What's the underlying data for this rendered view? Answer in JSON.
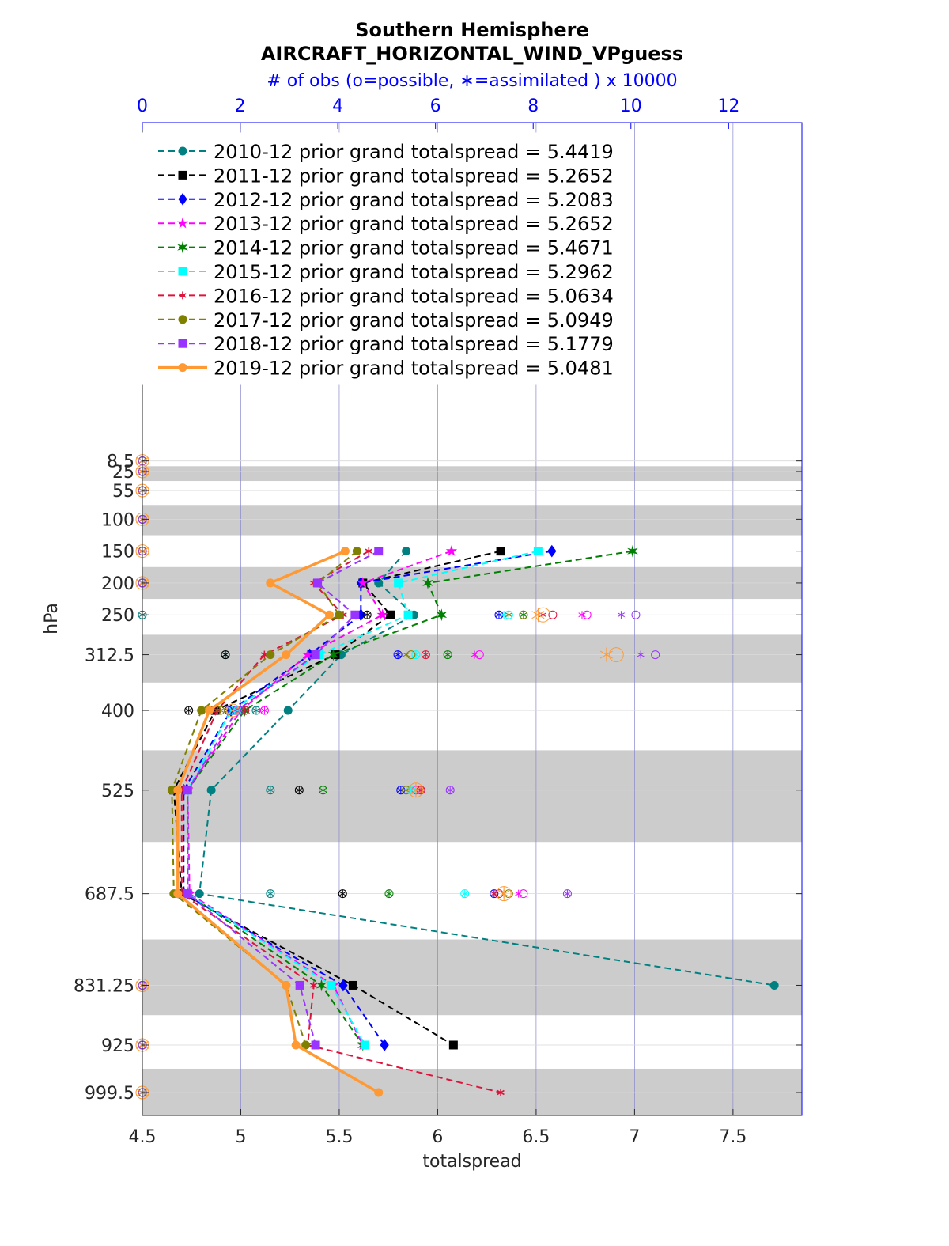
{
  "chart_data": {
    "type": "line",
    "title": "Southern Hemisphere",
    "subtitle": "AIRCRAFT_HORIZONTAL_WIND_VPguess",
    "top_axis_label": "# of obs (o=possible, ∗=assimilated ) x 10000",
    "xlabel": "totalspread",
    "ylabel": "hPa",
    "xlim": [
      4.5,
      7.85
    ],
    "x_ticks": [
      "4.5",
      "5",
      "5.5",
      "6",
      "6.5",
      "7",
      "7.5"
    ],
    "top_lim": [
      0,
      13.5
    ],
    "top_ticks": [
      "0",
      "2",
      "4",
      "6",
      "8",
      "10",
      "12"
    ],
    "levels": [
      8.5,
      25,
      55,
      100,
      150,
      200,
      250,
      312.5,
      400,
      525,
      687.5,
      831.25,
      925,
      999.5
    ],
    "level_labels": [
      "8.5",
      "25",
      "55",
      "100",
      "150",
      "200",
      "250",
      "312.5",
      "400",
      "525",
      "687.5",
      "831.25",
      "925",
      "999.5"
    ],
    "band_levels": [
      25,
      100,
      200,
      312.5,
      525,
      831.25,
      999.5
    ],
    "series": [
      {
        "name": "2010-12 prior grand totalspread = 5.4419",
        "color": "#008080",
        "marker": "circle",
        "style": "dashed",
        "values": [
          null,
          null,
          null,
          null,
          5.84,
          5.7,
          5.88,
          5.51,
          5.24,
          4.85,
          4.79,
          7.71,
          null,
          null
        ],
        "obs_possible": [
          0,
          0,
          0,
          0,
          0,
          0,
          0,
          1.7,
          2.33,
          2.62,
          2.62,
          0,
          0,
          0
        ],
        "obs_assim": [
          0,
          0,
          0,
          0,
          0,
          0,
          0,
          1.7,
          2.33,
          2.62,
          2.62,
          0,
          0,
          0
        ]
      },
      {
        "name": "2011-12 prior grand totalspread = 5.2652",
        "color": "#000000",
        "marker": "square",
        "style": "dashed",
        "values": [
          null,
          null,
          null,
          null,
          6.32,
          5.62,
          5.76,
          5.48,
          4.87,
          4.66,
          4.7,
          5.57,
          6.08,
          null
        ],
        "obs_possible": [
          0,
          0,
          0,
          0,
          0,
          0,
          4.6,
          1.7,
          0.95,
          3.21,
          4.1,
          0,
          0,
          0
        ],
        "obs_assim": [
          0,
          0,
          0,
          0,
          0,
          0,
          4.6,
          1.7,
          0.95,
          3.21,
          4.1,
          0,
          0,
          0
        ]
      },
      {
        "name": "2012-12 prior grand totalspread = 5.2083",
        "color": "#0000ff",
        "marker": "diamond",
        "style": "dashed",
        "values": [
          null,
          null,
          null,
          null,
          6.58,
          5.61,
          5.61,
          5.35,
          4.95,
          4.71,
          4.71,
          5.52,
          5.73,
          null
        ],
        "obs_possible": [
          0,
          0,
          0,
          0,
          0,
          0,
          7.3,
          5.23,
          1.76,
          5.29,
          7.2,
          0,
          0,
          0
        ],
        "obs_assim": [
          0,
          0,
          0,
          0,
          0,
          0,
          7.3,
          5.23,
          1.76,
          5.29,
          7.2,
          0,
          0,
          0
        ]
      },
      {
        "name": "2013-12 prior grand totalspread = 5.2652",
        "color": "#ff00ff",
        "marker": "star",
        "style": "dashed",
        "values": [
          null,
          null,
          null,
          null,
          6.07,
          5.62,
          5.72,
          5.34,
          5.0,
          4.73,
          4.74,
          5.47,
          5.62,
          null
        ],
        "obs_possible": [
          0,
          0,
          0,
          0,
          0,
          0,
          9.1,
          6.9,
          2.5,
          5.6,
          7.8,
          0,
          0,
          0
        ],
        "obs_assim": [
          0,
          0,
          0,
          0,
          0,
          0,
          9.0,
          6.8,
          2.5,
          5.6,
          7.7,
          0,
          0,
          0
        ]
      },
      {
        "name": "2014-12 prior grand totalspread = 5.4671",
        "color": "#008000",
        "marker": "hexagram",
        "style": "dashed",
        "values": [
          null,
          null,
          null,
          null,
          6.99,
          5.95,
          6.02,
          5.47,
          5.02,
          4.73,
          4.73,
          5.41,
          5.62,
          null
        ],
        "obs_possible": [
          0,
          0,
          0,
          0,
          0,
          0,
          7.8,
          6.25,
          2.1,
          3.7,
          5.05,
          0,
          0,
          0
        ],
        "obs_assim": [
          0,
          0,
          0,
          0,
          0,
          0,
          7.8,
          6.25,
          2.1,
          3.7,
          5.05,
          0,
          0,
          0
        ]
      },
      {
        "name": "2015-12 prior grand totalspread = 5.2962",
        "color": "#00ffff",
        "marker": "square",
        "style": "dashed",
        "values": [
          null,
          null,
          null,
          null,
          6.51,
          5.8,
          5.85,
          5.4,
          4.95,
          4.73,
          4.73,
          5.46,
          5.63,
          null
        ],
        "obs_possible": [
          0,
          0,
          0,
          0,
          0,
          0,
          7.5,
          5.6,
          1.95,
          5.5,
          6.6,
          0,
          0,
          0
        ],
        "obs_assim": [
          0,
          0,
          0,
          0,
          0,
          0,
          7.4,
          5.6,
          1.95,
          5.5,
          6.6,
          0,
          0,
          0
        ]
      },
      {
        "name": "2016-12 prior grand totalspread = 5.0634",
        "color": "#dc143c",
        "marker": "asterisk",
        "style": "dashed",
        "values": [
          null,
          null,
          null,
          null,
          5.65,
          5.37,
          5.52,
          5.12,
          4.88,
          4.7,
          4.7,
          5.37,
          5.34,
          6.32
        ],
        "obs_possible": [
          0,
          0,
          0,
          0,
          0,
          0,
          8.4,
          5.8,
          2.1,
          5.7,
          7.3,
          0,
          0,
          0
        ],
        "obs_assim": [
          0,
          0,
          0,
          0,
          0,
          0,
          8.2,
          5.8,
          2.1,
          5.7,
          7.2,
          0,
          0,
          0
        ]
      },
      {
        "name": "2017-12 prior grand totalspread = 5.0949",
        "color": "#808000",
        "marker": "circle",
        "style": "dashed",
        "values": [
          null,
          null,
          null,
          null,
          5.59,
          5.39,
          5.5,
          5.15,
          4.8,
          4.65,
          4.66,
          5.23,
          5.33,
          null
        ],
        "obs_possible": [
          0,
          0,
          0,
          0,
          0,
          0,
          7.8,
          5.5,
          1.6,
          5.4,
          7.5,
          0,
          0,
          0
        ],
        "obs_assim": [
          0,
          0,
          0,
          0,
          0,
          0,
          7.5,
          5.4,
          1.6,
          5.4,
          7.4,
          0,
          0,
          0
        ]
      },
      {
        "name": "2018-12 prior grand totalspread = 5.1779",
        "color": "#9933ff",
        "marker": "square",
        "style": "dashed",
        "values": [
          null,
          null,
          null,
          null,
          5.7,
          5.39,
          5.58,
          5.38,
          4.98,
          4.73,
          4.73,
          5.3,
          5.38,
          null
        ],
        "obs_possible": [
          0,
          0,
          0,
          0,
          0,
          0,
          10.1,
          10.5,
          2.0,
          6.3,
          8.7,
          0,
          0,
          0
        ],
        "obs_assim": [
          0,
          0,
          0,
          0,
          0,
          0,
          9.8,
          10.2,
          2.0,
          6.3,
          8.7,
          0,
          0,
          0
        ]
      },
      {
        "name": "2019-12 prior grand totalspread = 5.0481",
        "color": "#ff9933",
        "marker": "circle",
        "style": "solid",
        "values": [
          null,
          null,
          null,
          null,
          5.53,
          5.15,
          5.45,
          5.23,
          4.84,
          4.68,
          4.68,
          5.23,
          5.28,
          5.7
        ],
        "obs_possible": [
          0,
          0,
          0,
          0,
          0,
          0,
          8.2,
          9.7,
          1.85,
          5.6,
          7.4,
          0,
          0,
          0
        ],
        "obs_assim": [
          0,
          0,
          0,
          0,
          0,
          0,
          8.1,
          9.5,
          1.85,
          5.6,
          7.4,
          0,
          0,
          0
        ]
      }
    ]
  }
}
